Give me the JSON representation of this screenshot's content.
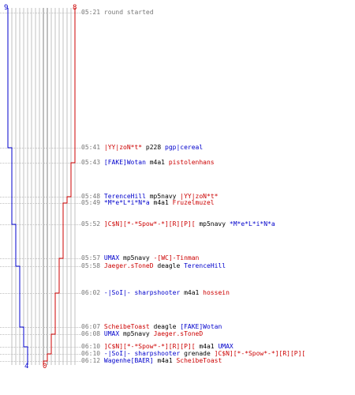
{
  "colors": {
    "blue": "#0000cc",
    "red": "#cc0000",
    "grid": "#c0c0c0",
    "dark_grid": "#808080",
    "text": "#777777"
  },
  "score": {
    "blue_start": "9",
    "red_start": "8",
    "blue_end": "4",
    "red_end": "0"
  },
  "events": [
    {
      "time": "05:21",
      "type": "msg",
      "text": "round started"
    },
    {
      "time": "05:41",
      "type": "kill",
      "killer": "|YY|zoN*t*",
      "killer_team": "red",
      "weapon": "p228",
      "victim": "pgp|cereal",
      "victim_team": "blue"
    },
    {
      "time": "05:43",
      "type": "kill",
      "killer": "[FAKE]Wotan",
      "killer_team": "blue",
      "weapon": "m4a1",
      "victim": "pistolenhans",
      "victim_team": "red"
    },
    {
      "time": "05:48",
      "type": "kill",
      "killer": "TerenceHill",
      "killer_team": "blue",
      "weapon": "mp5navy",
      "victim": "|YY|zoN*t*",
      "victim_team": "red"
    },
    {
      "time": "05:49",
      "type": "kill",
      "killer": "*M*e*L*i*N*a",
      "killer_team": "blue",
      "weapon": "m4a1",
      "victim": "Fruzelmuzel",
      "victim_team": "red"
    },
    {
      "time": "05:52",
      "type": "kill",
      "killer": "]C$N][*-*Spow*-*][R][P][",
      "killer_team": "red",
      "weapon": "mp5navy",
      "victim": "*M*e*L*i*N*a",
      "victim_team": "blue"
    },
    {
      "time": "05:57",
      "type": "kill",
      "killer": "UMAX",
      "killer_team": "blue",
      "weapon": "mp5navy",
      "victim": "-[WC]-Tinman",
      "victim_team": "red"
    },
    {
      "time": "05:58",
      "type": "kill",
      "killer": "Jaeger.sToneD",
      "killer_team": "red",
      "weapon": "deagle",
      "victim": "TerenceHill",
      "victim_team": "blue"
    },
    {
      "time": "06:02",
      "type": "kill",
      "killer": "-|SoI|- sharpshooter",
      "killer_team": "blue",
      "weapon": "m4a1",
      "victim": "hossein",
      "victim_team": "red"
    },
    {
      "time": "06:07",
      "type": "kill",
      "killer": "ScheibeToast",
      "killer_team": "red",
      "weapon": "deagle",
      "victim": "[FAKE]Wotan",
      "victim_team": "blue"
    },
    {
      "time": "06:08",
      "type": "kill",
      "killer": "UMAX",
      "killer_team": "blue",
      "weapon": "mp5navy",
      "victim": "Jaeger.sToneD",
      "victim_team": "red"
    },
    {
      "time": "06:10",
      "type": "kill",
      "killer": "]C$N][*-*Spow*-*][R][P][",
      "killer_team": "red",
      "weapon": "m4a1",
      "victim": "UMAX",
      "victim_team": "blue"
    },
    {
      "time": "06:10",
      "type": "kill",
      "killer": "-|SoI|- sharpshooter",
      "killer_team": "blue",
      "weapon": "grenade",
      "victim": "]C$N][*-*Spow*-*][R][P][",
      "victim_team": "red"
    },
    {
      "time": "06:12",
      "type": "kill",
      "killer": "Wagenhe[BAER]",
      "killer_team": "blue",
      "weapon": "m4a1",
      "victim": "ScheibeToast",
      "victim_team": "red"
    }
  ]
}
